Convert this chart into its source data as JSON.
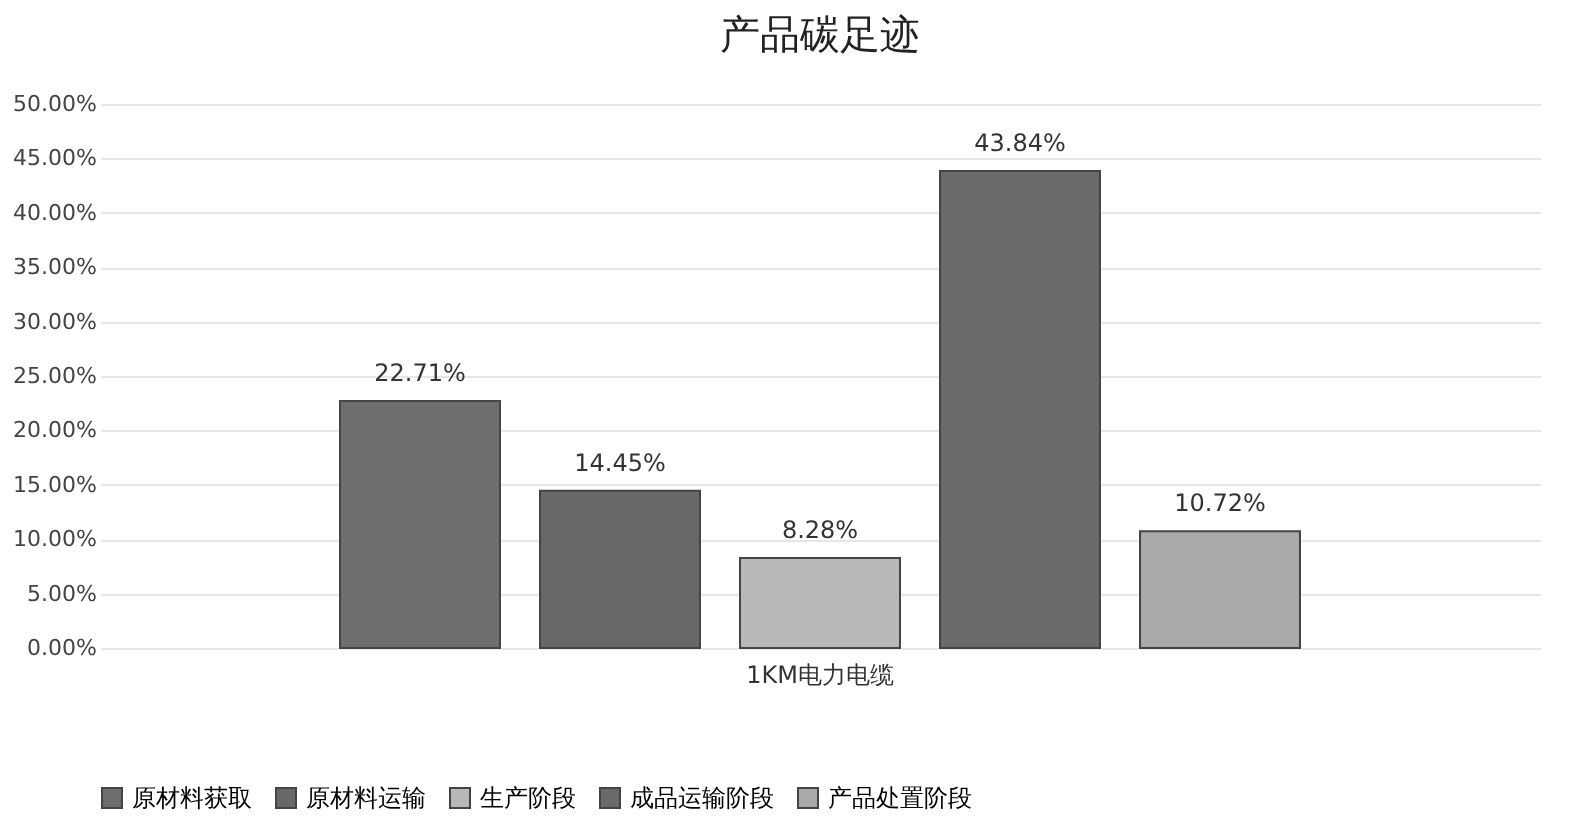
{
  "chart_data": {
    "type": "bar",
    "title": "产品碳足迹",
    "categories": [
      "1KM电力电缆"
    ],
    "series": [
      {
        "name": "原材料获取",
        "color": "#6e6e6e",
        "values": [
          22.71
        ],
        "value_labels": [
          "22.71%"
        ]
      },
      {
        "name": "原材料运输",
        "color": "#686868",
        "values": [
          14.45
        ],
        "value_labels": [
          "14.45%"
        ]
      },
      {
        "name": "生产阶段",
        "color": "#b8b8b8",
        "values": [
          8.28
        ],
        "value_labels": [
          "8.28%"
        ]
      },
      {
        "name": "成品运输阶段",
        "color": "#6a6a6a",
        "values": [
          43.84
        ],
        "value_labels": [
          "43.84%"
        ]
      },
      {
        "name": "产品处置阶段",
        "color": "#a9a9a9",
        "values": [
          10.72
        ],
        "value_labels": [
          "10.72%"
        ]
      }
    ],
    "ylim": [
      0,
      50
    ],
    "yticks": [
      {
        "value": 0,
        "label": "0.00%"
      },
      {
        "value": 5,
        "label": "5.00%"
      },
      {
        "value": 10,
        "label": "10.00%"
      },
      {
        "value": 15,
        "label": "15.00%"
      },
      {
        "value": 20,
        "label": "20.00%"
      },
      {
        "value": 25,
        "label": "25.00%"
      },
      {
        "value": 30,
        "label": "30.00%"
      },
      {
        "value": 35,
        "label": "35.00%"
      },
      {
        "value": 40,
        "label": "40.00%"
      },
      {
        "value": 45,
        "label": "45.00%"
      },
      {
        "value": 50,
        "label": "50.00%"
      }
    ],
    "grid": "y",
    "legend": "bottom"
  }
}
